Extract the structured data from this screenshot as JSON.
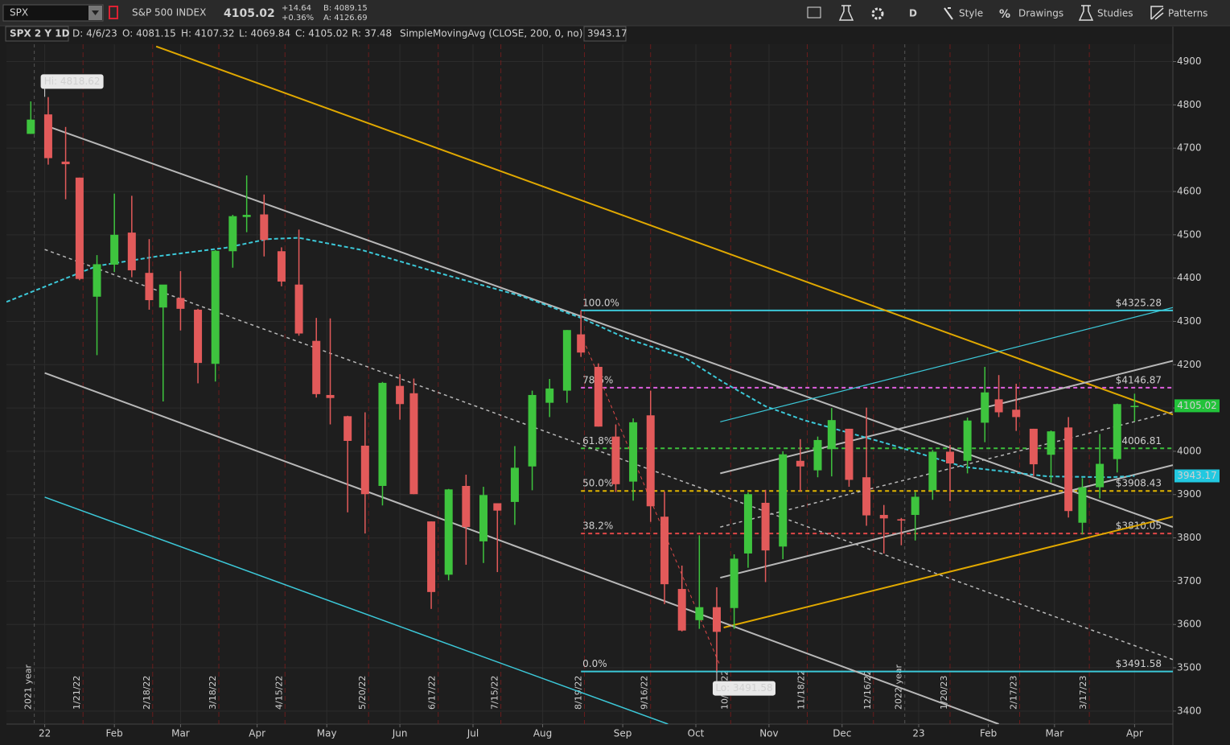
{
  "toolbar": {
    "symbol": "SPX",
    "description": "S&P 500 INDEX",
    "last": "4105.02",
    "change": "+14.64",
    "change_pct": "+0.36%",
    "bid": "B: 4089.15",
    "ask": "A: 4126.69",
    "aggregation": "D",
    "menu": [
      "Style",
      "Drawings",
      "Studies",
      "Patterns"
    ]
  },
  "info_bar": {
    "title": "SPX 2 Y 1D",
    "date": "D: 4/6/23",
    "open": "O: 4081.15",
    "high": "H: 4107.32",
    "low": "L: 4069.84",
    "close": "C: 4105.02",
    "range": "R: 37.48",
    "study": "SimpleMovingAvg (CLOSE, 200, 0, no)",
    "study_value": "3943.17"
  },
  "chart_data": {
    "type": "candlestick",
    "xlim": [
      -11,
      324
    ],
    "ylim": [
      3370,
      4940
    ],
    "xticks": [
      {
        "value": 0,
        "label": "22"
      },
      {
        "value": 20,
        "label": "Feb"
      },
      {
        "value": 39,
        "label": "Mar"
      },
      {
        "value": 61,
        "label": "Apr"
      },
      {
        "value": 81,
        "label": "May"
      },
      {
        "value": 102,
        "label": "Jun"
      },
      {
        "value": 123,
        "label": "Jul"
      },
      {
        "value": 143,
        "label": "Aug"
      },
      {
        "value": 166,
        "label": "Sep"
      },
      {
        "value": 187,
        "label": "Oct"
      },
      {
        "value": 208,
        "label": "Nov"
      },
      {
        "value": 229,
        "label": "Dec"
      },
      {
        "value": 251,
        "label": "23"
      },
      {
        "value": 271,
        "label": "Feb"
      },
      {
        "value": 290,
        "label": "Mar"
      },
      {
        "value": 313,
        "label": "Apr"
      }
    ],
    "yticks": [
      3400,
      3500,
      3600,
      3700,
      3800,
      3900,
      4000,
      4100,
      4200,
      4300,
      4400,
      4500,
      4600,
      4700,
      4800,
      4900
    ],
    "grid": true,
    "up_color": "#3ec43e",
    "down_color": "#e25a5a",
    "candles": {
      "x": [
        -4,
        1,
        6,
        10,
        15,
        20,
        25,
        30,
        34,
        39,
        44,
        49,
        54,
        58,
        63,
        68,
        73,
        78,
        82,
        87,
        92,
        97,
        102,
        106,
        111,
        116,
        121,
        126,
        130,
        135,
        140,
        145,
        150,
        154,
        159,
        164,
        169,
        174,
        178,
        183,
        188,
        193,
        198,
        202,
        207,
        212,
        217,
        222,
        226,
        231,
        236,
        241,
        246,
        250,
        255,
        260,
        265,
        270,
        274,
        279,
        284,
        289,
        294,
        298,
        303,
        308,
        313
      ],
      "open": [
        4733,
        4778,
        4669,
        4632,
        4357,
        4431,
        4505,
        4412,
        4332,
        4354,
        4327,
        4202,
        4462,
        4541,
        4547,
        4462,
        4385,
        4255,
        4130,
        4081,
        4013,
        3920,
        4151,
        4134,
        3838,
        3715,
        3920,
        3792,
        3880,
        3883,
        3965,
        4112,
        4140,
        4270,
        4195,
        4034,
        3930,
        4083,
        3849,
        3682,
        3610,
        3640,
        3638,
        3764,
        3881,
        3780,
        3978,
        3956,
        4005,
        4052,
        3940,
        3853,
        3843,
        3853,
        3910,
        3999,
        3978,
        4066,
        4120,
        4096,
        4052,
        3992,
        4055,
        3835,
        3917,
        3982,
        4102
      ],
      "high": [
        4808,
        4818,
        4749,
        4632,
        4453,
        4595,
        4590,
        4490,
        4362,
        4416,
        4329,
        4465,
        4546,
        4637,
        4593,
        4471,
        4512,
        4308,
        4307,
        4082,
        4090,
        4160,
        4178,
        4168,
        3838,
        3913,
        3946,
        3918,
        3880,
        4012,
        4140,
        4167,
        4280,
        4325,
        4203,
        4062,
        4076,
        4140,
        3907,
        3736,
        3806,
        3686,
        3762,
        3905,
        3911,
        4000,
        4028,
        4034,
        4100,
        4052,
        4101,
        3876,
        3846,
        3906,
        4003,
        4015,
        4078,
        4195,
        4176,
        4156,
        4052,
        4048,
        4079,
        3938,
        4040,
        4110,
        4133
      ],
      "low": [
        4733,
        4662,
        4582,
        4395,
        4222,
        4414,
        4402,
        4327,
        4115,
        4279,
        4157,
        4161,
        4424,
        4506,
        4450,
        4381,
        4267,
        4124,
        4062,
        3859,
        3810,
        3875,
        4073,
        3901,
        3636,
        3702,
        3738,
        3742,
        3721,
        3830,
        3910,
        4079,
        4112,
        4218,
        4057,
        3906,
        3886,
        3837,
        3647,
        3584,
        3590,
        3492,
        3590,
        3731,
        3698,
        3751,
        3907,
        3940,
        3942,
        3918,
        3828,
        3764,
        3783,
        3794,
        3888,
        3885,
        3949,
        4021,
        4079,
        4047,
        3943,
        3928,
        3847,
        3808,
        3891,
        3951,
        4069
      ],
      "close": [
        4766,
        4677,
        4663,
        4398,
        4432,
        4500,
        4418,
        4349,
        4385,
        4329,
        4204,
        4463,
        4543,
        4546,
        4488,
        4392,
        4272,
        4132,
        4123,
        4024,
        3901,
        4158,
        4109,
        3901,
        3675,
        3912,
        3825,
        3899,
        3863,
        3962,
        4130,
        4145,
        4280,
        4228,
        4057,
        3924,
        4067,
        3873,
        3693,
        3586,
        3640,
        3583,
        3752,
        3901,
        3771,
        3993,
        3965,
        4026,
        4072,
        3934,
        3852,
        3845,
        3840,
        3895,
        3999,
        3972,
        4071,
        4136,
        4090,
        4079,
        3970,
        4046,
        3862,
        3917,
        3971,
        4109,
        4105
      ]
    },
    "sma": {
      "color": "#3cc8d8",
      "x": [
        -11,
        15,
        33,
        52,
        64,
        73,
        91,
        114,
        137,
        154,
        167,
        184,
        195,
        207,
        218,
        241,
        264,
        288,
        306,
        313
      ],
      "values": [
        4345,
        4428,
        4451,
        4470,
        4490,
        4493,
        4465,
        4410,
        4358,
        4308,
        4261,
        4215,
        4159,
        4104,
        4072,
        4020,
        3964,
        3942,
        3940,
        3943.17
      ]
    },
    "price_tags": [
      {
        "value": 4105.02,
        "color": "#22c33a",
        "text_color": "#062b06"
      },
      {
        "value": 3943.17,
        "color": "#22c8e0",
        "text_color": "#06243a"
      }
    ],
    "fib": {
      "x": [
        154,
        324
      ],
      "levels": [
        {
          "label": "100.0%",
          "value": 4325.28,
          "value_label": "$4325.28",
          "color": "#3cc8d8",
          "dash": false
        },
        {
          "label": "78.6%",
          "value": 4146.87,
          "value_label": "$4146.87",
          "color": "#e060e0",
          "dash": true
        },
        {
          "label": "61.8%",
          "value": 4006.81,
          "value_label": "$4006.81",
          "color": "#3cc03c",
          "dash": true
        },
        {
          "label": "50.0%",
          "value": 3908.43,
          "value_label": "$3908.43",
          "color": "#e0b400",
          "dash": true
        },
        {
          "label": "38.2%",
          "value": 3810.05,
          "value_label": "$3810.05",
          "color": "#e04848",
          "dash": true
        },
        {
          "label": "0.0%",
          "value": 3491.58,
          "value_label": "$3491.58",
          "color": "#3cc8d8",
          "dash": false
        }
      ]
    },
    "trendlines": [
      {
        "x": [
          32,
          324
        ],
        "y": [
          4935,
          4085
        ],
        "color": "#e0a800",
        "dash": false,
        "width": 2
      },
      {
        "x": [
          195,
          324
        ],
        "y": [
          3593,
          3849
        ],
        "color": "#e0a800",
        "dash": false,
        "width": 2
      },
      {
        "x": [
          0,
          324
        ],
        "y": [
          4753,
          3825
        ],
        "color": "#b8b8b8",
        "dash": false,
        "width": 2
      },
      {
        "x": [
          0,
          274
        ],
        "y": [
          4181,
          3370
        ],
        "color": "#b8b8b8",
        "dash": false,
        "width": 2
      },
      {
        "x": [
          0,
          324
        ],
        "y": [
          4466,
          3519
        ],
        "color": "#b8b8b8",
        "dash": true,
        "width": 1.5
      },
      {
        "x": [
          0,
          179
        ],
        "y": [
          3894,
          3370
        ],
        "color": "#3cc8d8",
        "dash": false,
        "width": 1.5
      },
      {
        "x": [
          194,
          324
        ],
        "y": [
          3949,
          4209
        ],
        "color": "#b8b8b8",
        "dash": false,
        "width": 2
      },
      {
        "x": [
          194,
          324
        ],
        "y": [
          3825,
          4091
        ],
        "color": "#b8b8b8",
        "dash": true,
        "width": 1.5
      },
      {
        "x": [
          194,
          324
        ],
        "y": [
          3708,
          3968
        ],
        "color": "#b8b8b8",
        "dash": false,
        "width": 2
      },
      {
        "x": [
          194,
          324
        ],
        "y": [
          4068,
          4332
        ],
        "color": "#3cc8d8",
        "dash": false,
        "width": 1.2
      },
      {
        "x": [
          154,
          194
        ],
        "y": [
          4271,
          3504
        ],
        "color": "#e04848",
        "dash": true,
        "width": 1
      }
    ],
    "extremes": [
      {
        "label": "Hi: 4818.62",
        "x": 0,
        "value": 4818.62,
        "side": "above"
      },
      {
        "label": "Lo: 3491.58",
        "x": 193,
        "value": 3491.58,
        "side": "below"
      }
    ],
    "expirations": [
      {
        "x": 11,
        "label": "1/21/22"
      },
      {
        "x": 31,
        "label": "2/18/22"
      },
      {
        "x": 50,
        "label": "3/18/22"
      },
      {
        "x": 69,
        "label": "4/15/22"
      },
      {
        "x": 93,
        "label": "5/20/22"
      },
      {
        "x": 113,
        "label": "6/17/22"
      },
      {
        "x": 131,
        "label": "7/15/22"
      },
      {
        "x": 155,
        "label": "8/19/22"
      },
      {
        "x": 174,
        "label": "9/16/22"
      },
      {
        "x": 197,
        "label": "10/21/22"
      },
      {
        "x": 219,
        "label": "11/18/22"
      },
      {
        "x": 238,
        "label": "12/16/22"
      },
      {
        "x": 260,
        "label": "1/20/23"
      },
      {
        "x": 280,
        "label": "2/17/23"
      },
      {
        "x": 300,
        "label": "3/17/23"
      }
    ],
    "year_markers": [
      {
        "x": -3,
        "label": "2021 year"
      },
      {
        "x": 247,
        "label": "2022 year"
      }
    ]
  }
}
